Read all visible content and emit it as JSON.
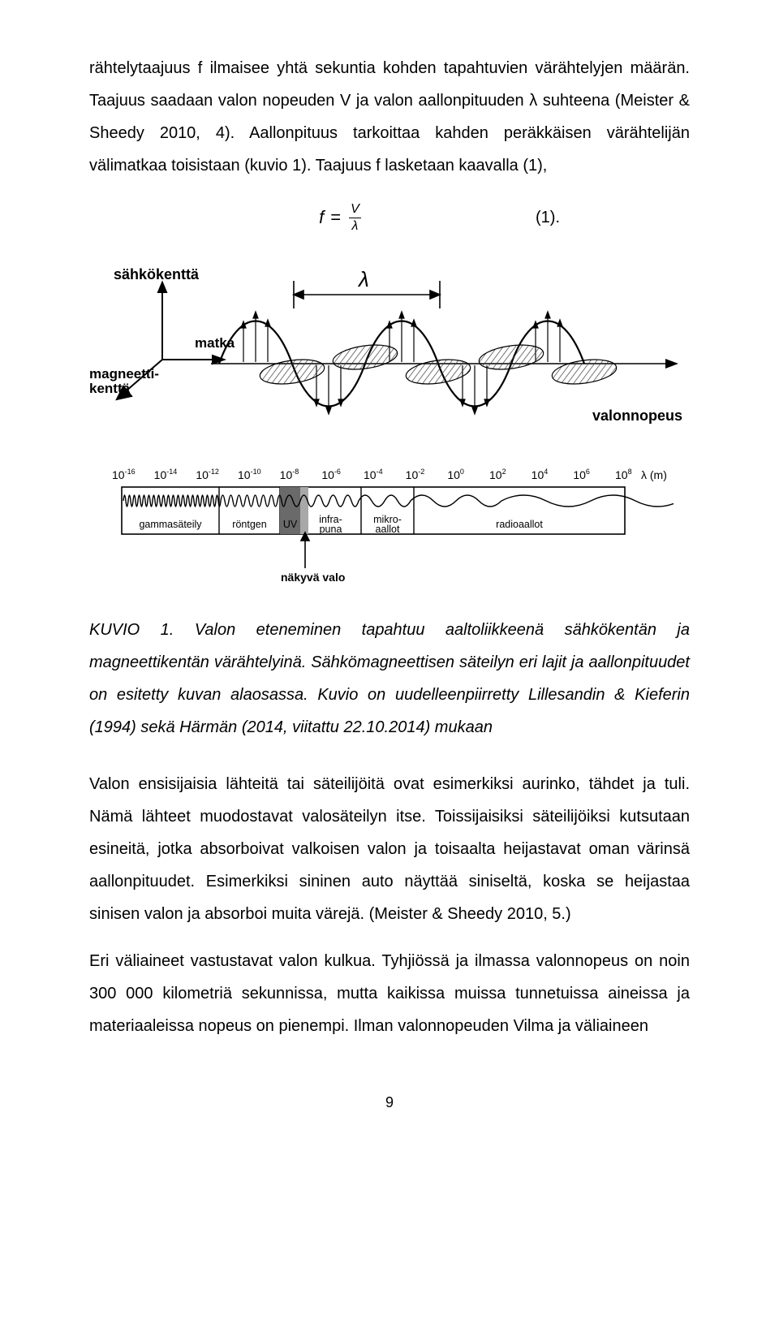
{
  "para1": "rähtelytaajuus f ilmaisee yhtä sekuntia kohden tapahtuvien värähtelyjen määrän. Taajuus saadaan valon nopeuden V ja valon aallonpituuden λ suhteena (Meister & Sheedy 2010, 4). Aallonpituus tarkoittaa kahden peräkkäisen värähtelijän välimatkaa toisistaan (kuvio 1). Taajuus f lasketaan kaavalla (1),",
  "formula": {
    "lhs": "f",
    "eq": "=",
    "num": "V",
    "den": "λ"
  },
  "formula_no": "(1).",
  "wave": {
    "labels": {
      "sahkokentta": "sähkökenttä",
      "magneettikentta": "magneetti-\nkenttä",
      "matka": "matka",
      "lambda": "λ",
      "valonnopeus": "valonnopeus"
    },
    "colors": {
      "stroke": "#000000",
      "fill_hatch": "#3a3a3a"
    }
  },
  "spectrum": {
    "exponents": [
      -16,
      -14,
      -12,
      -10,
      -8,
      -6,
      -4,
      -2,
      0,
      2,
      4,
      6,
      8
    ],
    "unit": "λ (m)",
    "bands": [
      "gammasäteily",
      "röntgen",
      "UV",
      "infra-\npuna",
      "mikro-\naallot",
      "radioaallot"
    ],
    "boundaries": [
      0,
      120,
      195,
      220,
      295,
      360,
      620
    ],
    "arrow_label": "näkyvä valo",
    "uv_band": "#6a6a6a",
    "visible_band": "#a8a8a8",
    "stroke": "#000000",
    "text": "#000000"
  },
  "caption_head": "KUVIO 1. ",
  "caption_body": "Valon eteneminen tapahtuu aaltoliikkeenä sähkökentän ja magneettikentän värähtelyinä. Sähkömagneettisen säteilyn eri lajit ja aallonpituudet on esitetty kuvan alaosassa. Kuvio on uudelleenpiirretty Lillesandin & Kieferin (1994) sekä Härmän (2014, viitattu 22.10.2014) mukaan",
  "para2": "Valon ensisijaisia lähteitä tai säteilijöitä ovat esimerkiksi aurinko, tähdet ja tuli. Nämä lähteet muodostavat valosäteilyn itse. Toissijaisiksi säteilijöiksi kutsutaan esineitä, jotka absorboivat valkoisen valon ja toisaalta heijastavat oman värinsä aallonpituudet. Esimerkiksi sininen auto näyttää siniseltä, koska se heijastaa sinisen valon ja absorboi muita värejä. (Meister & Sheedy 2010, 5.)",
  "para3": "Eri väliaineet vastustavat valon kulkua. Tyhjiössä ja ilmassa valonnopeus on noin 300 000 kilometriä sekunnissa, mutta kaikissa muissa tunnetuissa aineissa ja materiaaleissa nopeus on pienempi. Ilman valonnopeuden Vilma ja väliaineen",
  "page_number": "9"
}
